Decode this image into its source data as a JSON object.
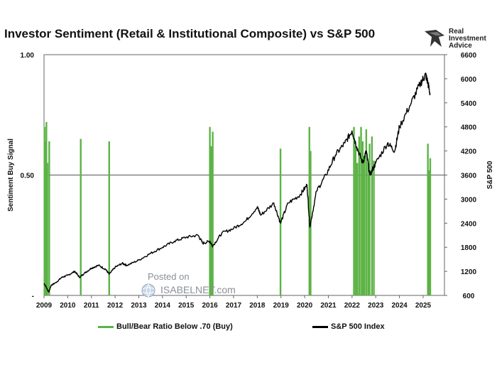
{
  "title": "Investor Sentiment (Retail & Institutional Composite) vs S&P 500",
  "logo": {
    "line1": "Real",
    "line2": "Investment",
    "line3": "Advice"
  },
  "watermark": {
    "posted": "Posted on",
    "site": "ISABELNET.com"
  },
  "colors": {
    "signal": "#5cb346",
    "index": "#000000",
    "refline": "#555555"
  },
  "chart_data": {
    "type": "line",
    "left_axis": {
      "label": "Sentiment Buy Signal",
      "ticks": [
        "1.00",
        "0.50",
        "-"
      ],
      "range": [
        0,
        1
      ]
    },
    "right_axis": {
      "label": "S&P 500",
      "ticks": [
        6600,
        6000,
        5400,
        4800,
        4200,
        3600,
        3000,
        2400,
        1800,
        1200,
        600
      ],
      "range": [
        600,
        6600
      ]
    },
    "x_ticks": [
      "2009",
      "2010",
      "2011",
      "2012",
      "2013",
      "2014",
      "2015",
      "2016",
      "2017",
      "2018",
      "2019",
      "2020",
      "2021",
      "2022",
      "2023",
      "2024",
      "2025"
    ],
    "x_range": [
      2009,
      2025.9
    ],
    "reference_line": 0.5,
    "series": [
      {
        "name": "Bull/Bear Ratio Below .70 (Buy)",
        "type": "bar",
        "axis": "left",
        "spikes": [
          [
            2009.02,
            0.7
          ],
          [
            2009.06,
            0.64
          ],
          [
            2009.1,
            0.72
          ],
          [
            2009.14,
            0.55
          ],
          [
            2009.22,
            0.64
          ],
          [
            2010.55,
            0.65
          ],
          [
            2011.75,
            0.64
          ],
          [
            2016.0,
            0.7
          ],
          [
            2016.05,
            0.62
          ],
          [
            2016.12,
            0.68
          ],
          [
            2018.98,
            0.61
          ],
          [
            2020.2,
            0.7
          ],
          [
            2020.25,
            0.6
          ],
          [
            2022.08,
            0.7
          ],
          [
            2022.15,
            0.62
          ],
          [
            2022.22,
            0.55
          ],
          [
            2022.3,
            0.66
          ],
          [
            2022.38,
            0.7
          ],
          [
            2022.45,
            0.64
          ],
          [
            2022.52,
            0.58
          ],
          [
            2022.6,
            0.69
          ],
          [
            2022.68,
            0.55
          ],
          [
            2022.74,
            0.63
          ],
          [
            2022.84,
            0.66
          ],
          [
            2022.92,
            0.56
          ],
          [
            2025.2,
            0.63
          ],
          [
            2025.25,
            0.52
          ],
          [
            2025.3,
            0.57
          ]
        ]
      },
      {
        "name": "S&P 500 Index",
        "type": "line",
        "axis": "right",
        "points": [
          [
            2009.0,
            900
          ],
          [
            2009.1,
            800
          ],
          [
            2009.2,
            680
          ],
          [
            2009.3,
            850
          ],
          [
            2009.5,
            920
          ],
          [
            2009.75,
            1050
          ],
          [
            2010.0,
            1100
          ],
          [
            2010.3,
            1200
          ],
          [
            2010.5,
            1050
          ],
          [
            2010.7,
            1150
          ],
          [
            2011.0,
            1280
          ],
          [
            2011.3,
            1350
          ],
          [
            2011.6,
            1250
          ],
          [
            2011.75,
            1130
          ],
          [
            2012.0,
            1300
          ],
          [
            2012.3,
            1400
          ],
          [
            2012.5,
            1350
          ],
          [
            2013.0,
            1480
          ],
          [
            2013.5,
            1650
          ],
          [
            2014.0,
            1800
          ],
          [
            2014.5,
            1950
          ],
          [
            2015.0,
            2050
          ],
          [
            2015.5,
            2100
          ],
          [
            2015.7,
            1900
          ],
          [
            2016.0,
            1950
          ],
          [
            2016.12,
            1830
          ],
          [
            2016.5,
            2150
          ],
          [
            2017.0,
            2270
          ],
          [
            2017.5,
            2450
          ],
          [
            2018.0,
            2800
          ],
          [
            2018.15,
            2600
          ],
          [
            2018.7,
            2900
          ],
          [
            2018.98,
            2400
          ],
          [
            2019.3,
            2900
          ],
          [
            2019.8,
            3100
          ],
          [
            2020.1,
            3350
          ],
          [
            2020.22,
            2300
          ],
          [
            2020.5,
            3200
          ],
          [
            2020.9,
            3600
          ],
          [
            2021.3,
            4100
          ],
          [
            2021.7,
            4400
          ],
          [
            2022.0,
            4700
          ],
          [
            2022.2,
            4300
          ],
          [
            2022.45,
            3900
          ],
          [
            2022.6,
            4200
          ],
          [
            2022.75,
            3600
          ],
          [
            2023.0,
            3900
          ],
          [
            2023.5,
            4400
          ],
          [
            2023.8,
            4200
          ],
          [
            2024.0,
            4800
          ],
          [
            2024.5,
            5400
          ],
          [
            2024.9,
            5900
          ],
          [
            2025.1,
            6100
          ],
          [
            2025.2,
            5900
          ],
          [
            2025.3,
            5600
          ]
        ]
      }
    ]
  }
}
